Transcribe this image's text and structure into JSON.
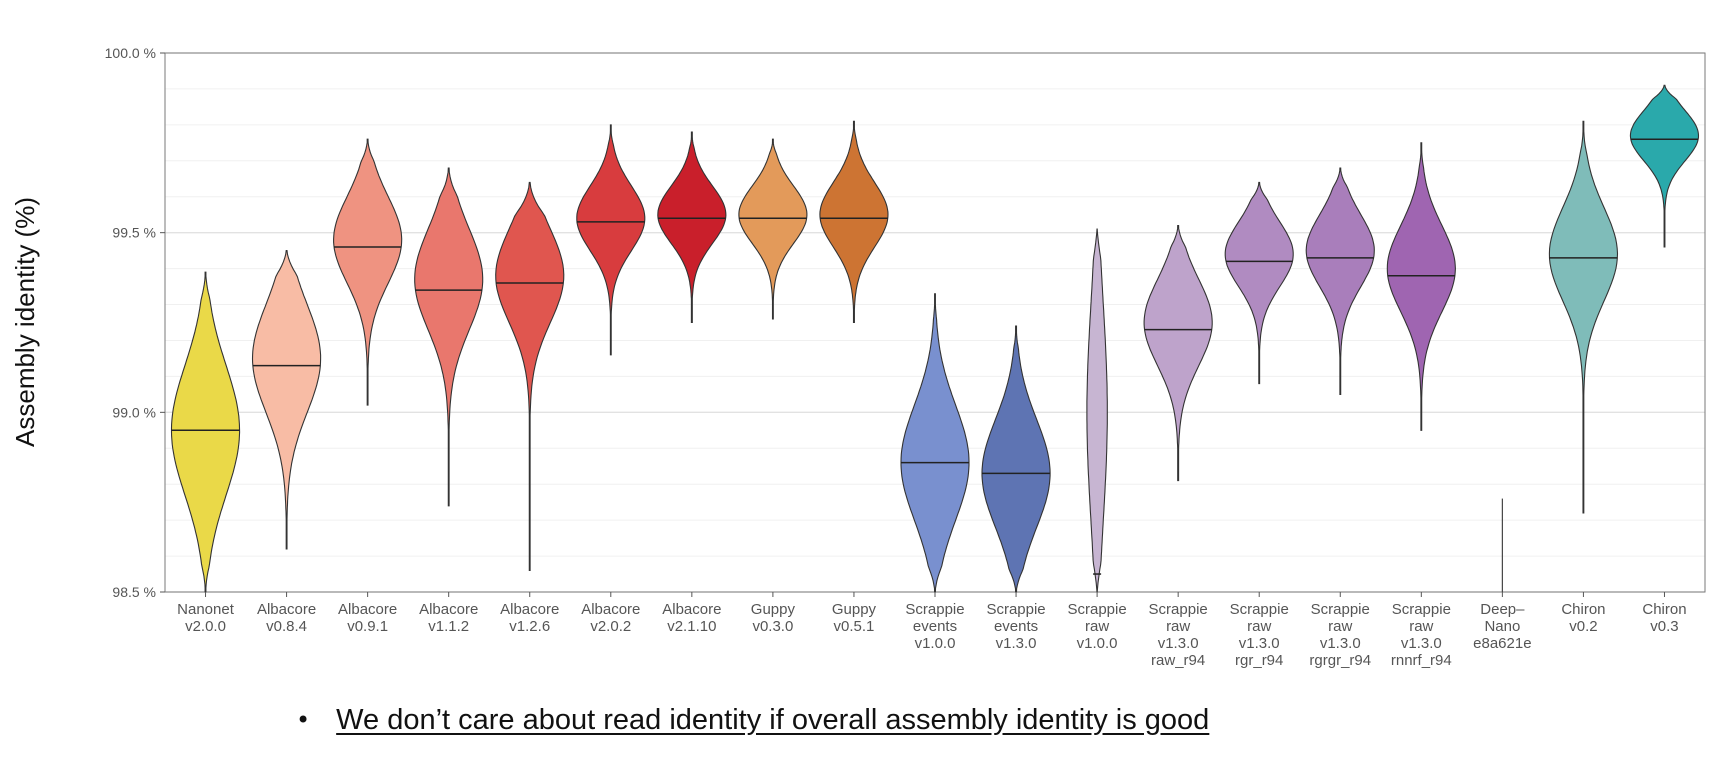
{
  "chart_data": {
    "type": "violin",
    "ylabel": "Assembly identity (%)",
    "ylim": [
      98.5,
      100.0
    ],
    "yticks": [
      98.5,
      99.0,
      99.5,
      100.0
    ],
    "ytick_labels": [
      "98.5 %",
      "99.0 %",
      "99.5 %",
      "100.0 %"
    ],
    "grid": true,
    "series": [
      {
        "label_lines": [
          "Nanonet",
          "v2.0.0"
        ],
        "min": 98.5,
        "max": 99.39,
        "median": 98.95,
        "peak": 98.95,
        "spread": 0.18,
        "color": "#ead948"
      },
      {
        "label_lines": [
          "Albacore",
          "v0.8.4"
        ],
        "min": 98.62,
        "max": 99.45,
        "median": 99.13,
        "peak": 99.15,
        "spread": 0.15,
        "color": "#f8bca5"
      },
      {
        "label_lines": [
          "Albacore",
          "v0.9.1"
        ],
        "min": 99.02,
        "max": 99.76,
        "median": 99.46,
        "peak": 99.48,
        "spread": 0.12,
        "color": "#ef9381"
      },
      {
        "label_lines": [
          "Albacore",
          "v1.1.2"
        ],
        "min": 98.74,
        "max": 99.68,
        "median": 99.34,
        "peak": 99.37,
        "spread": 0.14,
        "color": "#e9776d"
      },
      {
        "label_lines": [
          "Albacore",
          "v1.2.6"
        ],
        "min": 98.56,
        "max": 99.64,
        "median": 99.36,
        "peak": 99.38,
        "spread": 0.13,
        "color": "#e0564f"
      },
      {
        "label_lines": [
          "Albacore",
          "v2.0.2"
        ],
        "min": 99.16,
        "max": 99.8,
        "median": 99.53,
        "peak": 99.54,
        "spread": 0.09,
        "color": "#d83c3e"
      },
      {
        "label_lines": [
          "Albacore",
          "v2.1.10"
        ],
        "min": 99.25,
        "max": 99.78,
        "median": 99.54,
        "peak": 99.55,
        "spread": 0.08,
        "color": "#c91f2b"
      },
      {
        "label_lines": [
          "Guppy",
          "v0.3.0"
        ],
        "min": 99.26,
        "max": 99.76,
        "median": 99.54,
        "peak": 99.55,
        "spread": 0.08,
        "color": "#e39a5a"
      },
      {
        "label_lines": [
          "Guppy",
          "v0.5.1"
        ],
        "min": 99.25,
        "max": 99.81,
        "median": 99.54,
        "peak": 99.55,
        "spread": 0.09,
        "color": "#cd7433"
      },
      {
        "label_lines": [
          "Scrappie",
          "events",
          "v1.0.0"
        ],
        "min": 98.5,
        "max": 99.33,
        "median": 98.86,
        "peak": 98.86,
        "spread": 0.16,
        "color": "#7990cf"
      },
      {
        "label_lines": [
          "Scrappie",
          "events",
          "v1.3.0"
        ],
        "min": 98.5,
        "max": 99.24,
        "median": 98.83,
        "peak": 98.83,
        "spread": 0.15,
        "color": "#5e74b3"
      },
      {
        "label_lines": [
          "Scrappie",
          "raw",
          "v1.0.0"
        ],
        "min": 98.5,
        "max": 99.51,
        "median": 98.55,
        "peak": 99.0,
        "spread": 0.3,
        "color": "#c7b5d2",
        "width_scale": 0.3
      },
      {
        "label_lines": [
          "Scrappie",
          "raw",
          "v1.3.0",
          "raw_r94"
        ],
        "min": 98.81,
        "max": 99.52,
        "median": 99.23,
        "peak": 99.25,
        "spread": 0.12,
        "color": "#bea3cb"
      },
      {
        "label_lines": [
          "Scrappie",
          "raw",
          "v1.3.0",
          "rgr_r94"
        ],
        "min": 99.08,
        "max": 99.64,
        "median": 99.42,
        "peak": 99.44,
        "spread": 0.09,
        "color": "#b08bc1"
      },
      {
        "label_lines": [
          "Scrappie",
          "raw",
          "v1.3.0",
          "rgrgr_r94"
        ],
        "min": 99.05,
        "max": 99.68,
        "median": 99.43,
        "peak": 99.45,
        "spread": 0.1,
        "color": "#a97ebb"
      },
      {
        "label_lines": [
          "Scrappie",
          "raw",
          "v1.3.0",
          "rnnrf_r94"
        ],
        "min": 98.95,
        "max": 99.75,
        "median": 99.38,
        "peak": 99.4,
        "spread": 0.12,
        "color": "#9f65b1"
      },
      {
        "label_lines": [
          "Deep–",
          "Nano",
          "e8a621e"
        ],
        "min": 98.5,
        "max": 98.76,
        "median": null,
        "peak": 98.6,
        "spread": 0.1,
        "color": "#8a8a8a",
        "width_scale": 0.0
      },
      {
        "label_lines": [
          "Chiron",
          "v0.2"
        ],
        "min": 98.72,
        "max": 99.81,
        "median": 99.43,
        "peak": 99.44,
        "spread": 0.13,
        "color": "#7fbcb9"
      },
      {
        "label_lines": [
          "Chiron",
          "v0.3"
        ],
        "min": 99.46,
        "max": 99.91,
        "median": 99.76,
        "peak": 99.77,
        "spread": 0.07,
        "color": "#2aa9ab"
      }
    ]
  },
  "footer": {
    "bullet": "•",
    "note": "We don’t care about read identity if overall assembly identity is good"
  }
}
